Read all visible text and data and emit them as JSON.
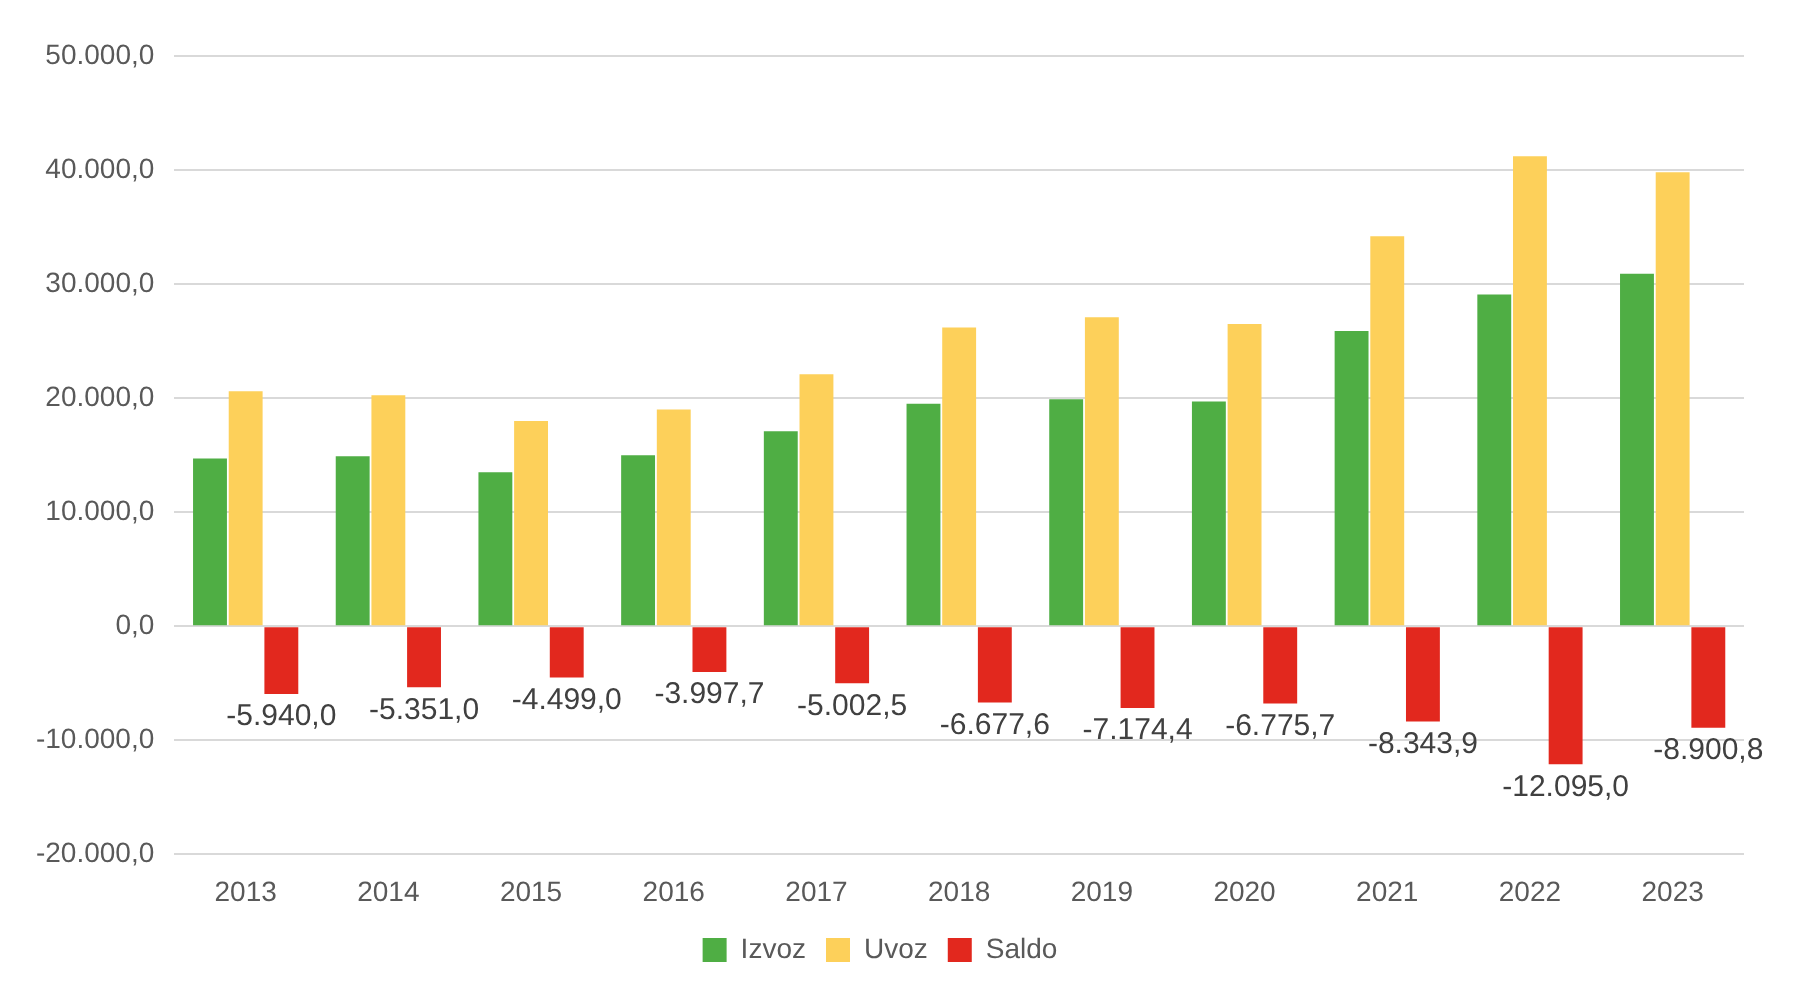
{
  "chart_data": {
    "type": "bar",
    "categories": [
      "2013",
      "2014",
      "2015",
      "2016",
      "2017",
      "2018",
      "2019",
      "2020",
      "2021",
      "2022",
      "2023"
    ],
    "series": [
      {
        "name": "Izvoz",
        "color": "#4fae44",
        "values": [
          14700,
          14900,
          13500,
          15000,
          17100,
          19500,
          19900,
          19700,
          25900,
          29100,
          30900
        ]
      },
      {
        "name": "Uvoz",
        "color": "#fdd05a",
        "values": [
          20600,
          20250,
          18000,
          19000,
          22100,
          26200,
          27100,
          26500,
          34200,
          41200,
          39800
        ]
      },
      {
        "name": "Saldo",
        "color": "#e2281e",
        "values": [
          -5940.0,
          -5351.0,
          -4499.0,
          -3997.7,
          -5002.5,
          -6677.6,
          -7174.4,
          -6775.7,
          -8343.9,
          -12095.0,
          -8900.8
        ],
        "value_labels": [
          "-5.940,0",
          "-5.351,0",
          "-4.499,0",
          "-3.997,7",
          "-5.002,5",
          "-6.677,6",
          "-7.174,4",
          "-6.775,7",
          "-8.343,9",
          "-12.095,0",
          "-8.900,8"
        ]
      }
    ],
    "ylim": [
      -20000,
      50000
    ],
    "yticks": [
      {
        "value": -20000,
        "label": "-20.000,0"
      },
      {
        "value": -10000,
        "label": "-10.000,0"
      },
      {
        "value": 0,
        "label": "0,0"
      },
      {
        "value": 10000,
        "label": "10.000,0"
      },
      {
        "value": 20000,
        "label": "20.000,0"
      },
      {
        "value": 30000,
        "label": "30.000,0"
      },
      {
        "value": 40000,
        "label": "40.000,0"
      },
      {
        "value": 50000,
        "label": "50.000,0"
      }
    ],
    "grid": "y",
    "legend": "bottom"
  }
}
